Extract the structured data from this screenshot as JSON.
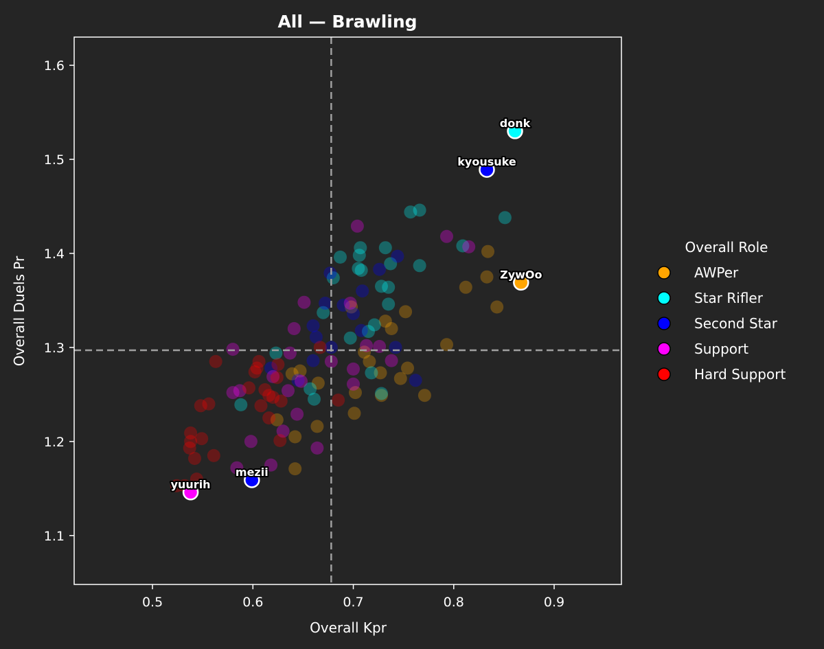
{
  "chart_data": {
    "type": "scatter",
    "title": "All — Brawling",
    "xlabel": "Overall Kpr",
    "ylabel": "Overall Duels Pr",
    "xlim": [
      0.422,
      0.967
    ],
    "ylim": [
      1.048,
      1.63
    ],
    "xticks": [
      0.5,
      0.6,
      0.7,
      0.8,
      0.9
    ],
    "xtick_labels": [
      "0.5",
      "0.6",
      "0.7",
      "0.8",
      "0.9"
    ],
    "yticks": [
      1.1,
      1.2,
      1.3,
      1.4,
      1.5,
      1.6
    ],
    "ytick_labels": [
      "1.1",
      "1.2",
      "1.3",
      "1.4",
      "1.5",
      "1.6"
    ],
    "vline_x": 0.678,
    "hline_y": 1.297,
    "legend": {
      "title": "Overall Role",
      "placement": "right",
      "entries": [
        {
          "label": "AWPer",
          "color": "#FFA500"
        },
        {
          "label": "Star Rifler",
          "color": "#00FFFF"
        },
        {
          "label": "Second Star",
          "color": "#0000FF"
        },
        {
          "label": "Support",
          "color": "#FF00FF"
        },
        {
          "label": "Hard Support",
          "color": "#FF0000"
        }
      ]
    },
    "highlighted": [
      {
        "name": "donk",
        "x": 0.861,
        "y": 1.53,
        "role": "Star Rifler"
      },
      {
        "name": "kyousuke",
        "x": 0.833,
        "y": 1.489,
        "role": "Second Star"
      },
      {
        "name": "ZywOo",
        "x": 0.867,
        "y": 1.369,
        "role": "AWPer"
      },
      {
        "name": "mezii",
        "x": 0.599,
        "y": 1.159,
        "role": "Second Star"
      },
      {
        "name": "yuurih",
        "x": 0.538,
        "y": 1.146,
        "role": "Support"
      }
    ],
    "series": [
      {
        "name": "AWPer",
        "color": "#FFA500",
        "points": [
          [
            0.834,
            1.402
          ],
          [
            0.833,
            1.375
          ],
          [
            0.812,
            1.364
          ],
          [
            0.843,
            1.343
          ],
          [
            0.793,
            1.303
          ],
          [
            0.752,
            1.338
          ],
          [
            0.738,
            1.32
          ],
          [
            0.732,
            1.328
          ],
          [
            0.711,
            1.295
          ],
          [
            0.716,
            1.285
          ],
          [
            0.727,
            1.273
          ],
          [
            0.754,
            1.278
          ],
          [
            0.747,
            1.267
          ],
          [
            0.771,
            1.249
          ],
          [
            0.702,
            1.252
          ],
          [
            0.728,
            1.249
          ],
          [
            0.701,
            1.23
          ],
          [
            0.698,
            1.343
          ],
          [
            0.665,
            1.262
          ],
          [
            0.647,
            1.275
          ],
          [
            0.639,
            1.272
          ],
          [
            0.664,
            1.216
          ],
          [
            0.642,
            1.205
          ],
          [
            0.642,
            1.171
          ],
          [
            0.624,
            1.223
          ]
        ]
      },
      {
        "name": "Star Rifler",
        "color": "#00FFFF",
        "points": [
          [
            0.757,
            1.444
          ],
          [
            0.766,
            1.446
          ],
          [
            0.851,
            1.438
          ],
          [
            0.809,
            1.408
          ],
          [
            0.732,
            1.406
          ],
          [
            0.707,
            1.406
          ],
          [
            0.706,
            1.398
          ],
          [
            0.687,
            1.396
          ],
          [
            0.766,
            1.387
          ],
          [
            0.737,
            1.389
          ],
          [
            0.708,
            1.382
          ],
          [
            0.705,
            1.384
          ],
          [
            0.68,
            1.374
          ],
          [
            0.728,
            1.365
          ],
          [
            0.735,
            1.364
          ],
          [
            0.735,
            1.346
          ],
          [
            0.67,
            1.337
          ],
          [
            0.721,
            1.324
          ],
          [
            0.715,
            1.317
          ],
          [
            0.697,
            1.31
          ],
          [
            0.623,
            1.294
          ],
          [
            0.718,
            1.273
          ],
          [
            0.657,
            1.256
          ],
          [
            0.728,
            1.251
          ],
          [
            0.661,
            1.245
          ],
          [
            0.588,
            1.239
          ]
        ]
      },
      {
        "name": "Second Star",
        "color": "#0000FF",
        "points": [
          [
            0.677,
            1.379
          ],
          [
            0.726,
            1.383
          ],
          [
            0.744,
            1.397
          ],
          [
            0.709,
            1.36
          ],
          [
            0.69,
            1.345
          ],
          [
            0.672,
            1.347
          ],
          [
            0.7,
            1.336
          ],
          [
            0.708,
            1.318
          ],
          [
            0.66,
            1.323
          ],
          [
            0.663,
            1.311
          ],
          [
            0.678,
            1.3
          ],
          [
            0.742,
            1.3
          ],
          [
            0.66,
            1.286
          ],
          [
            0.762,
            1.265
          ],
          [
            0.618,
            1.278
          ],
          [
            0.645,
            1.265
          ]
        ]
      },
      {
        "name": "Support",
        "color": "#FF00FF",
        "points": [
          [
            0.704,
            1.429
          ],
          [
            0.793,
            1.418
          ],
          [
            0.815,
            1.407
          ],
          [
            0.651,
            1.348
          ],
          [
            0.697,
            1.347
          ],
          [
            0.641,
            1.32
          ],
          [
            0.726,
            1.301
          ],
          [
            0.58,
            1.298
          ],
          [
            0.713,
            1.302
          ],
          [
            0.7,
            1.277
          ],
          [
            0.738,
            1.286
          ],
          [
            0.678,
            1.285
          ],
          [
            0.637,
            1.294
          ],
          [
            0.7,
            1.261
          ],
          [
            0.648,
            1.264
          ],
          [
            0.587,
            1.254
          ],
          [
            0.62,
            1.269
          ],
          [
            0.635,
            1.254
          ],
          [
            0.644,
            1.229
          ],
          [
            0.598,
            1.2
          ],
          [
            0.664,
            1.193
          ],
          [
            0.63,
            1.211
          ],
          [
            0.584,
            1.172
          ],
          [
            0.618,
            1.175
          ],
          [
            0.58,
            1.252
          ]
        ]
      },
      {
        "name": "Hard Support",
        "color": "#FF0000",
        "points": [
          [
            0.563,
            1.285
          ],
          [
            0.606,
            1.285
          ],
          [
            0.602,
            1.274
          ],
          [
            0.612,
            1.255
          ],
          [
            0.624,
            1.268
          ],
          [
            0.616,
            1.249
          ],
          [
            0.608,
            1.238
          ],
          [
            0.596,
            1.257
          ],
          [
            0.628,
            1.243
          ],
          [
            0.625,
            1.282
          ],
          [
            0.62,
            1.247
          ],
          [
            0.616,
            1.225
          ],
          [
            0.627,
            1.201
          ],
          [
            0.548,
            1.238
          ],
          [
            0.556,
            1.24
          ],
          [
            0.549,
            1.203
          ],
          [
            0.538,
            1.209
          ],
          [
            0.538,
            1.2
          ],
          [
            0.537,
            1.193
          ],
          [
            0.542,
            1.182
          ],
          [
            0.561,
            1.185
          ],
          [
            0.544,
            1.16
          ],
          [
            0.532,
            1.153
          ],
          [
            0.524,
            1.153
          ],
          [
            0.685,
            1.244
          ],
          [
            0.667,
            1.3
          ],
          [
            0.604,
            1.278
          ]
        ]
      }
    ]
  }
}
